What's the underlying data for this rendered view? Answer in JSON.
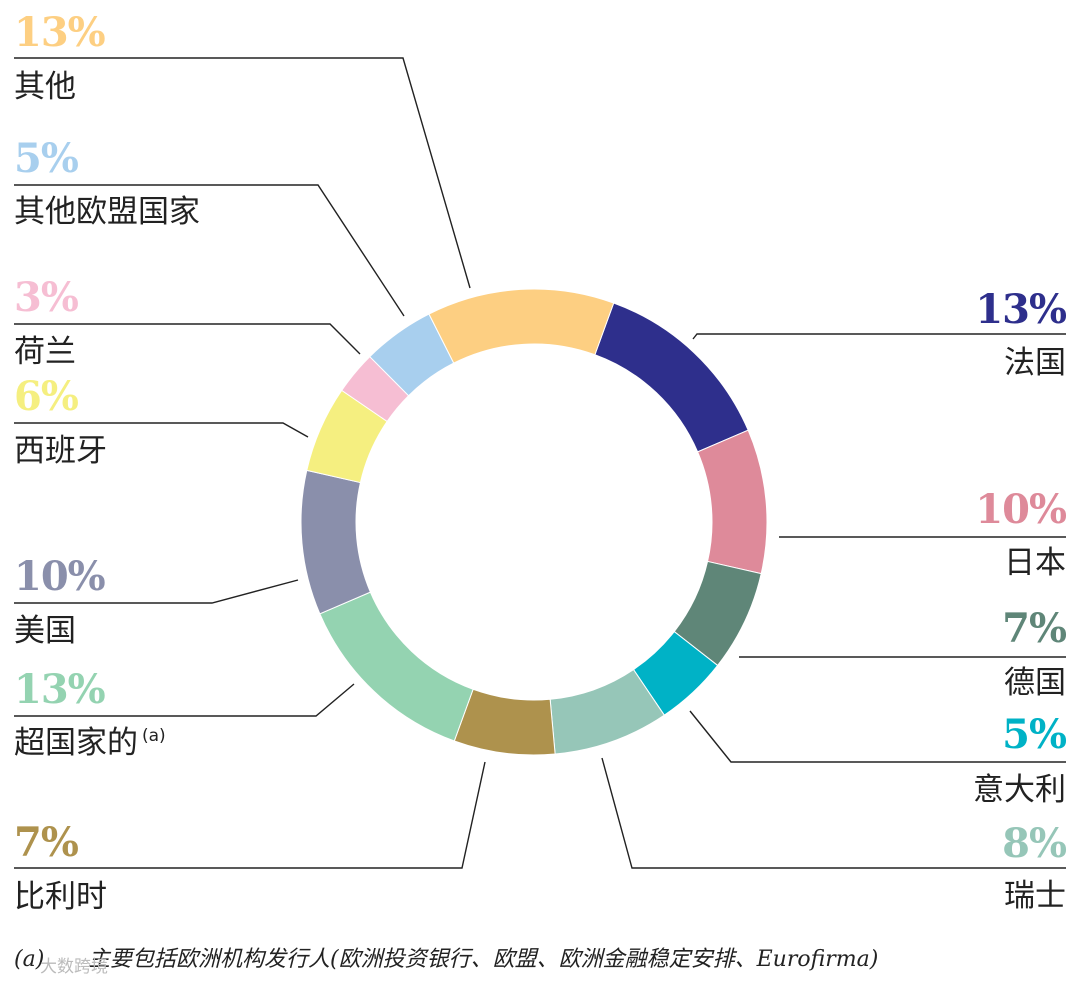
{
  "chart_data": {
    "type": "pie",
    "variant": "donut",
    "slices": [
      {
        "label": "法国",
        "value": 13,
        "percent_label": "13%",
        "color": "#2e2f8c"
      },
      {
        "label": "日本",
        "value": 10,
        "percent_label": "10%",
        "color": "#de8a9a"
      },
      {
        "label": "德国",
        "value": 7,
        "percent_label": "7%",
        "color": "#5f8678"
      },
      {
        "label": "意大利",
        "value": 5,
        "percent_label": "5%",
        "color": "#00b2c6"
      },
      {
        "label": "瑞士",
        "value": 8,
        "percent_label": "8%",
        "color": "#96c6b8"
      },
      {
        "label": "比利时",
        "value": 7,
        "percent_label": "7%",
        "color": "#ae924d"
      },
      {
        "label": "超国家的",
        "label_sup": "(a)",
        "value": 13,
        "percent_label": "13%",
        "color": "#94d3b1"
      },
      {
        "label": "美国",
        "value": 10,
        "percent_label": "10%",
        "color": "#8a8fab"
      },
      {
        "label": "西班牙",
        "value": 6,
        "percent_label": "6%",
        "color": "#f5ef80"
      },
      {
        "label": "荷兰",
        "value": 3,
        "percent_label": "3%",
        "color": "#f6bed3"
      },
      {
        "label": "其他欧盟国家",
        "value": 5,
        "percent_label": "5%",
        "color": "#a8cfee"
      },
      {
        "label": "其他",
        "value": 13,
        "percent_label": "13%",
        "color": "#fdcf82"
      }
    ]
  },
  "footnote": {
    "marker": "(a)",
    "text": "主要包括欧洲机构发行人(欧洲投资银行、欧盟、欧洲金融稳定安排、Eurofirma)"
  },
  "watermark": "大数跨境"
}
